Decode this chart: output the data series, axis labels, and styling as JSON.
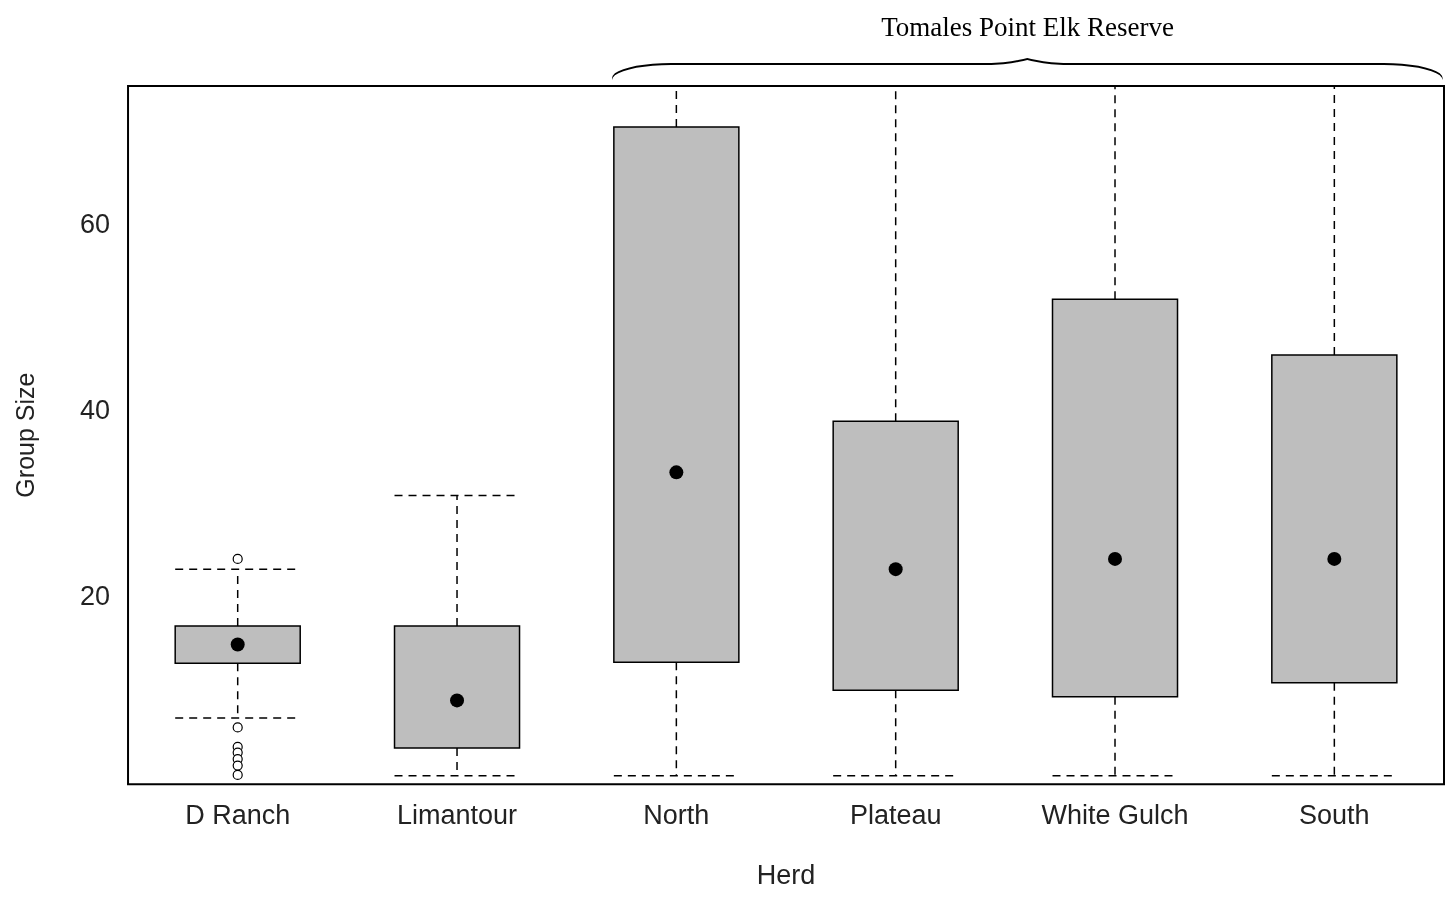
{
  "chart_data": {
    "type": "box",
    "xlabel": "Herd",
    "ylabel": "Group Size",
    "color": "#bebebe",
    "categories": [
      "D Ranch",
      "Limantour",
      "North",
      "Plateau",
      "White Gulch",
      "South"
    ],
    "boxes": [
      {
        "low": 7.1,
        "q1": 13,
        "median": 15,
        "q3": 17,
        "high": 23.1,
        "outliers": [
          24.2,
          6.1,
          4,
          3.4,
          2.7,
          2,
          1
        ]
      },
      {
        "low": 0.9,
        "q1": 3.9,
        "median": 9,
        "q3": 17,
        "high": 31
      },
      {
        "low": 0.9,
        "q1": 13.1,
        "median": 33.5,
        "q3": 70.6,
        "high": 75
      },
      {
        "low": 0.9,
        "q1": 10.1,
        "median": 23.1,
        "q3": 39,
        "high": 75
      },
      {
        "low": 0.9,
        "q1": 9.4,
        "median": 24.2,
        "q3": 52.1,
        "high": 75
      },
      {
        "low": 0.9,
        "q1": 10.9,
        "median": 24.2,
        "q3": 46.1,
        "high": 75
      }
    ],
    "ylim": [
      0,
      75
    ],
    "yticks": [
      20,
      40,
      60
    ],
    "annotations": [
      "Tomales Point Elk Reserve"
    ]
  }
}
